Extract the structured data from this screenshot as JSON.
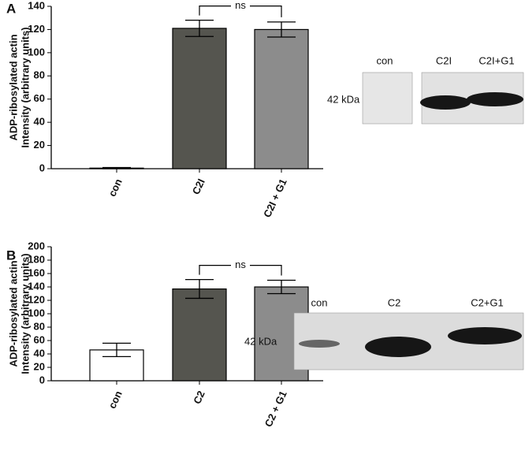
{
  "chart_data": [
    {
      "type": "bar",
      "panel": "A",
      "ylabel": [
        "ADP-ribosylated actin",
        "Intensity (arbitrary units)"
      ],
      "categories": [
        "con",
        "C2I",
        "C2I + G1"
      ],
      "values": [
        0.5,
        121,
        120
      ],
      "errors": [
        0.5,
        7,
        6.5
      ],
      "colors": [
        "#ffffff",
        "#55554f",
        "#8c8c8c"
      ],
      "ylim": [
        0,
        140
      ],
      "yticks": [
        0,
        20,
        40,
        60,
        80,
        100,
        120,
        140
      ],
      "annotation": "ns",
      "blot": {
        "lanes": [
          "con",
          "C2I",
          "C2I+G1"
        ],
        "marker": "42 kDa"
      }
    },
    {
      "type": "bar",
      "panel": "B",
      "ylabel": [
        "ADP-ribosylated actin",
        "Intensity (arbitrary units)"
      ],
      "categories": [
        "con",
        "C2",
        "C2 + G1"
      ],
      "values": [
        46,
        137,
        140
      ],
      "errors": [
        10,
        14,
        10
      ],
      "colors": [
        "#ffffff",
        "#55554f",
        "#8c8c8c"
      ],
      "ylim": [
        0,
        200
      ],
      "yticks": [
        0,
        20,
        40,
        60,
        80,
        100,
        120,
        140,
        160,
        180,
        200
      ],
      "annotation": "ns",
      "blot": {
        "lanes": [
          "con",
          "C2",
          "C2+G1"
        ],
        "marker": "42 kDa"
      }
    }
  ]
}
